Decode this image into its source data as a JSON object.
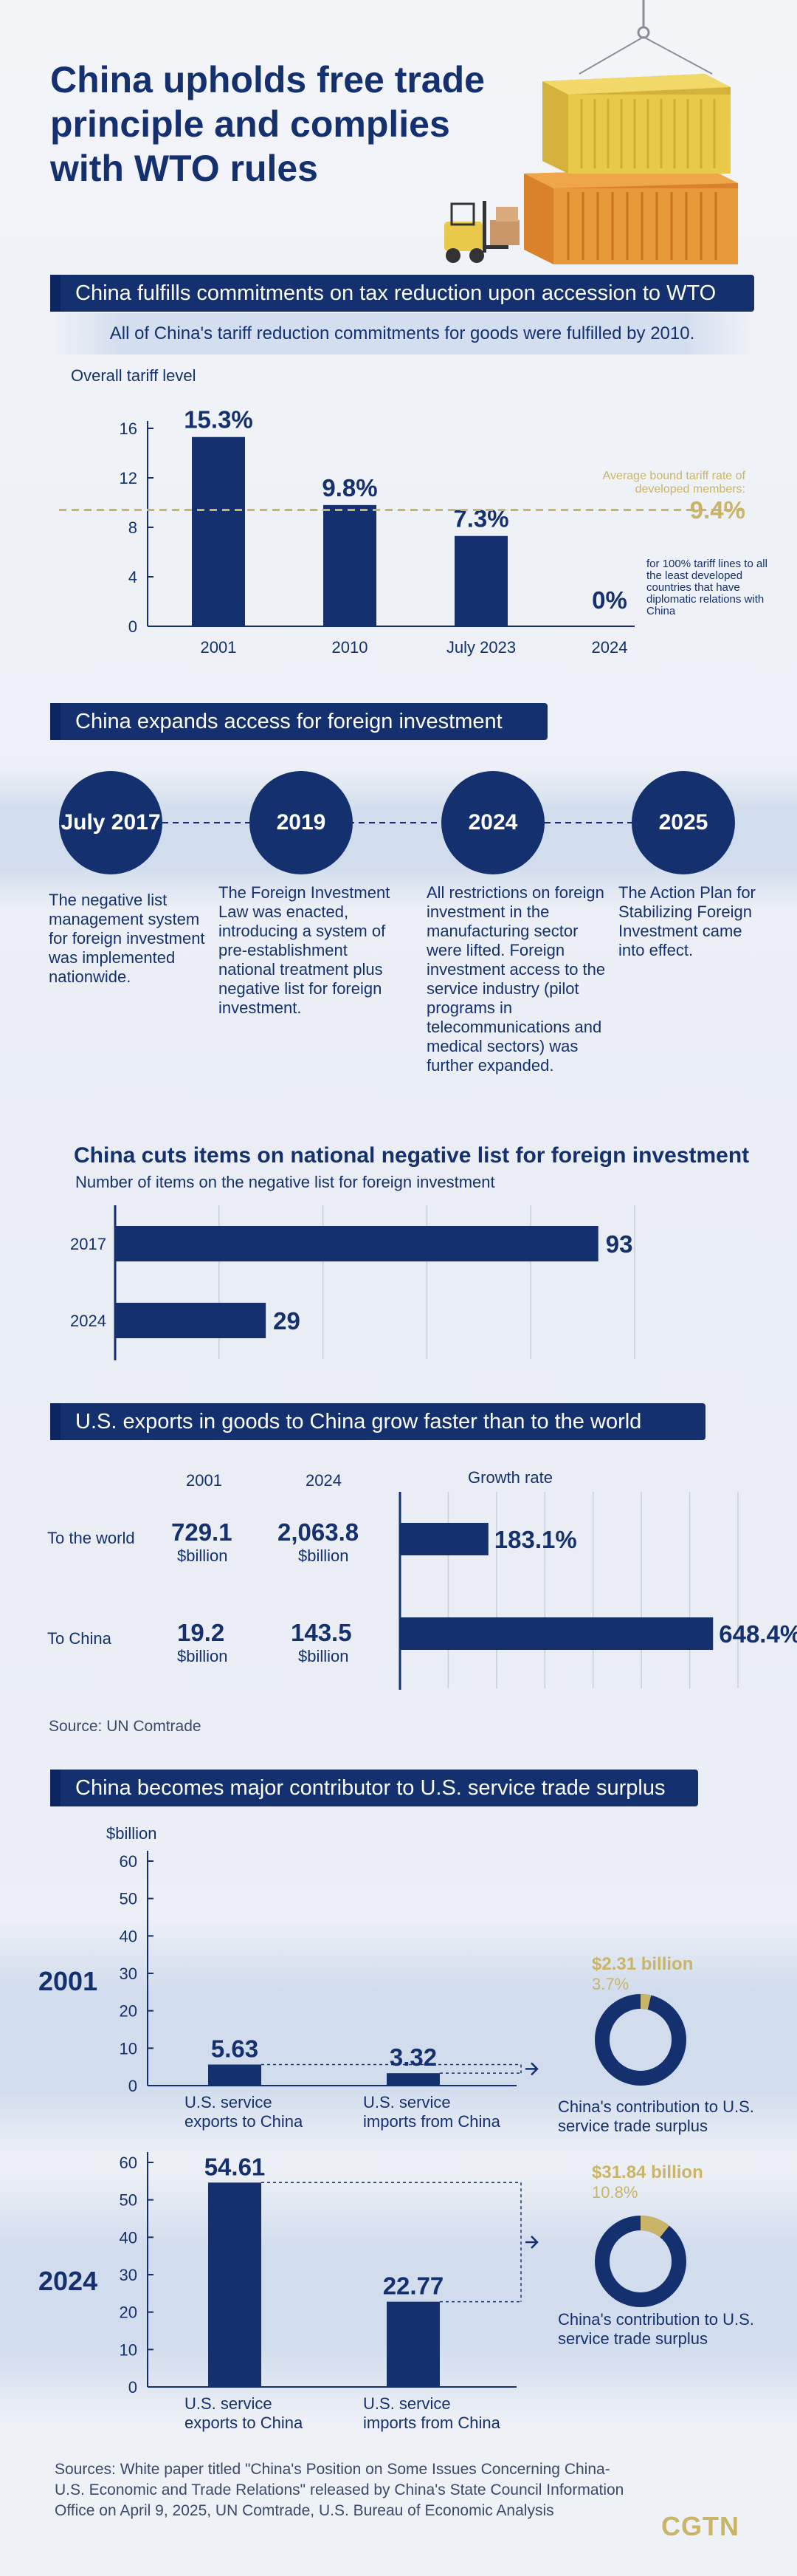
{
  "header": {
    "title": "China upholds free trade principle and complies with WTO rules"
  },
  "section1": {
    "banner": "China fulfills commitments on tax reduction upon accession to WTO",
    "subtitle": "All of China's tariff reduction commitments for goods were fulfilled by 2010.",
    "axis_title": "Overall tariff level",
    "ref_label": "Average bound tariff rate of developed members:",
    "ref_value": "9.4%",
    "note_2024": "for 100% tariff lines to all the least developed countries that have diplomatic relations with China"
  },
  "section2": {
    "banner": "China expands access for foreign investment",
    "events": [
      {
        "year": "July 2017",
        "text": "The negative list management system for foreign investment was implemented nationwide."
      },
      {
        "year": "2019",
        "text": "The Foreign Investment Law was enacted, introducing a system of pre-establishment national treatment plus negative list for foreign investment."
      },
      {
        "year": "2024",
        "text": "All restrictions on foreign investment in the manufacturing sector were lifted. Foreign investment access to the service industry (pilot programs in telecommunications and medical sectors) was further expanded."
      },
      {
        "year": "2025",
        "text": "The Action Plan for Stabilizing Foreign Investment came into effect."
      }
    ]
  },
  "section3": {
    "title": "China cuts items on national negative list for foreign investment",
    "subtitle": "Number of items on the negative list for foreign investment"
  },
  "section4": {
    "banner": "U.S. exports in goods to China grow faster than to the world",
    "col_2001": "2001",
    "col_2024": "2024",
    "col_growth": "Growth rate",
    "unit": "$billion",
    "rows": [
      {
        "label": "To the world",
        "v2001": "729.1",
        "v2024": "2,063.8",
        "growth": "183.1%"
      },
      {
        "label": "To China",
        "v2001": "19.2",
        "v2024": "143.5",
        "growth": "648.4%"
      }
    ],
    "source": "Source: UN Comtrade"
  },
  "section5": {
    "banner": "China becomes major contributor to U.S. service trade surplus",
    "unit": "$billion",
    "panels": [
      {
        "year": "2001",
        "donut_value": "$2.31 billion",
        "donut_pct": "3.7%",
        "donut_label": "China's contribution to U.S. service trade surplus"
      },
      {
        "year": "2024",
        "donut_value": "$31.84 billion",
        "donut_pct": "10.8%",
        "donut_label": "China's contribution to U.S. service trade surplus"
      }
    ]
  },
  "footer": {
    "sources": "Sources: White paper titled \"China's Position on Some Issues Concerning China-U.S. Economic and Trade Relations\" released by China's State Council Information Office on April 9, 2025, UN Comtrade, U.S. Bureau of Economic Analysis",
    "logo": "CGTN"
  },
  "colors": {
    "navy": "#14306e",
    "gold": "#c9b467",
    "container_yellow": "#e8c94a",
    "container_orange": "#e79a3a"
  },
  "chart_data": [
    {
      "type": "bar",
      "title": "Overall tariff level",
      "categories": [
        "2001",
        "2010",
        "July 2023",
        "2024"
      ],
      "values": [
        15.3,
        9.8,
        7.3,
        0
      ],
      "value_labels": [
        "15.3%",
        "9.8%",
        "7.3%",
        "0%"
      ],
      "yticks": [
        0,
        4,
        8,
        12,
        16
      ],
      "ylim": [
        0,
        16
      ],
      "reference_line": 9.4
    },
    {
      "type": "bar",
      "orientation": "horizontal",
      "title": "Number of items on the negative list for foreign investment",
      "categories": [
        "2017",
        "2024"
      ],
      "values": [
        93,
        29
      ],
      "xlim": [
        0,
        100
      ]
    },
    {
      "type": "bar",
      "orientation": "horizontal",
      "title": "Growth rate",
      "categories": [
        "To the world",
        "To China"
      ],
      "values": [
        183.1,
        648.4
      ],
      "value_labels": [
        "183.1%",
        "648.4%"
      ],
      "xlim": [
        0,
        700
      ]
    },
    {
      "type": "bar",
      "title": "2001",
      "ylabel": "$billion",
      "categories": [
        "U.S. service exports to China",
        "U.S. service imports from China"
      ],
      "values": [
        5.63,
        3.32
      ],
      "value_labels": [
        "5.63",
        "3.32"
      ],
      "yticks": [
        0,
        10,
        20,
        30,
        40,
        50,
        60
      ],
      "ylim": [
        0,
        60
      ]
    },
    {
      "type": "bar",
      "title": "2024",
      "ylabel": "$billion",
      "categories": [
        "U.S. service exports to China",
        "U.S. service imports from China"
      ],
      "values": [
        54.61,
        22.77
      ],
      "value_labels": [
        "54.61",
        "22.77"
      ],
      "yticks": [
        0,
        10,
        20,
        30,
        40,
        50,
        60
      ],
      "ylim": [
        0,
        60
      ]
    },
    {
      "type": "pie",
      "title": "China's contribution to U.S. service trade surplus 2001",
      "categories": [
        "China",
        "Other"
      ],
      "values": [
        3.7,
        96.3
      ]
    },
    {
      "type": "pie",
      "title": "China's contribution to U.S. service trade surplus 2024",
      "categories": [
        "China",
        "Other"
      ],
      "values": [
        10.8,
        89.2
      ]
    }
  ]
}
